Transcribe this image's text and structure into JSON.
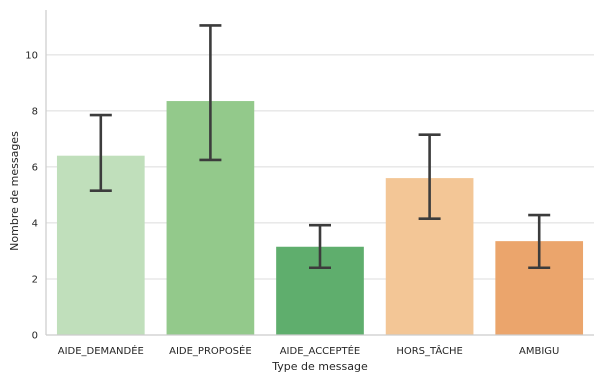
{
  "chart_data": {
    "type": "bar",
    "xlabel": "Type de message",
    "ylabel": "Nombre de messages",
    "ylim": [
      0,
      11.6
    ],
    "yticks": [
      0,
      2,
      4,
      6,
      8,
      10
    ],
    "grid": "horizontal",
    "categories": [
      "AIDE_DEMANDÉE",
      "AIDE_PROPOSÉE",
      "AIDE_ACCEPTÉE",
      "HORS_TÂCHE",
      "AMBIGU"
    ],
    "values": [
      6.4,
      8.35,
      3.15,
      5.6,
      3.35
    ],
    "error_low": [
      5.15,
      6.25,
      2.4,
      4.15,
      2.4
    ],
    "error_high": [
      7.85,
      11.05,
      3.92,
      7.15,
      4.28
    ],
    "colors": [
      "#c0dfbb",
      "#93c98b",
      "#5fae6d",
      "#f3c696",
      "#eba56c"
    ],
    "error_bar_color": "#3c3c3c",
    "grid_color": "#dcdcdc",
    "axis_color": "#cccccc"
  }
}
